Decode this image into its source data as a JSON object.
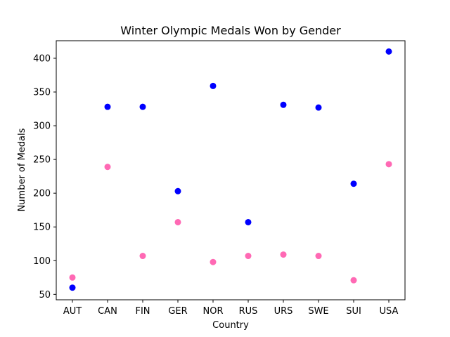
{
  "chart_data": {
    "type": "scatter",
    "title": "Winter Olympic Medals Won by Gender",
    "xlabel": "Country",
    "ylabel": "Number of Medals",
    "categories": [
      "AUT",
      "CAN",
      "FIN",
      "GER",
      "NOR",
      "RUS",
      "URS",
      "SWE",
      "SUI",
      "USA"
    ],
    "ylim": [
      42,
      426
    ],
    "yticks": [
      50,
      100,
      150,
      200,
      250,
      300,
      350,
      400
    ],
    "grid": false,
    "series": [
      {
        "color": "#0000ff",
        "values": [
          60,
          328,
          328,
          203,
          359,
          157,
          331,
          327,
          214,
          410
        ]
      },
      {
        "color": "#ff69b4",
        "values": [
          75,
          239,
          107,
          157,
          98,
          107,
          109,
          107,
          71,
          243
        ]
      }
    ]
  }
}
